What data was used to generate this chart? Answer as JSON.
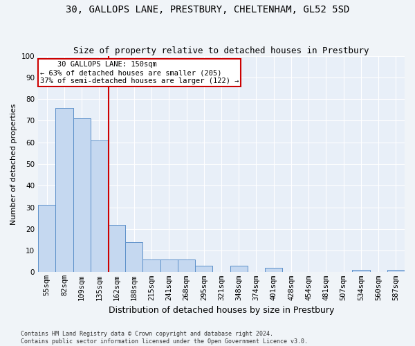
{
  "title": "30, GALLOPS LANE, PRESTBURY, CHELTENHAM, GL52 5SD",
  "subtitle": "Size of property relative to detached houses in Prestbury",
  "xlabel": "Distribution of detached houses by size in Prestbury",
  "ylabel": "Number of detached properties",
  "categories": [
    "55sqm",
    "82sqm",
    "109sqm",
    "135sqm",
    "162sqm",
    "188sqm",
    "215sqm",
    "241sqm",
    "268sqm",
    "295sqm",
    "321sqm",
    "348sqm",
    "374sqm",
    "401sqm",
    "428sqm",
    "454sqm",
    "481sqm",
    "507sqm",
    "534sqm",
    "560sqm",
    "587sqm"
  ],
  "values": [
    31,
    76,
    71,
    61,
    22,
    14,
    6,
    6,
    6,
    3,
    0,
    3,
    0,
    2,
    0,
    0,
    0,
    0,
    1,
    0,
    1
  ],
  "bar_color": "#c5d8f0",
  "bar_edge_color": "#5b8fc9",
  "vline_color": "#cc0000",
  "vline_x": 3.55,
  "annotation_line1": "    30 GALLOPS LANE: 150sqm",
  "annotation_line2": "← 63% of detached houses are smaller (205)",
  "annotation_line3": "37% of semi-detached houses are larger (122) →",
  "annotation_box_color": "#ffffff",
  "annotation_box_edge": "#cc0000",
  "footer": "Contains HM Land Registry data © Crown copyright and database right 2024.\nContains public sector information licensed under the Open Government Licence v3.0.",
  "ylim": [
    0,
    100
  ],
  "yticks": [
    0,
    10,
    20,
    30,
    40,
    50,
    60,
    70,
    80,
    90,
    100
  ],
  "fig_bg_color": "#f0f4f8",
  "ax_bg_color": "#e8eff8",
  "grid_color": "#ffffff",
  "title_fontsize": 10,
  "subtitle_fontsize": 9,
  "ylabel_fontsize": 8,
  "xlabel_fontsize": 9,
  "tick_fontsize": 7.5,
  "annotation_fontsize": 7.5,
  "footer_fontsize": 6
}
